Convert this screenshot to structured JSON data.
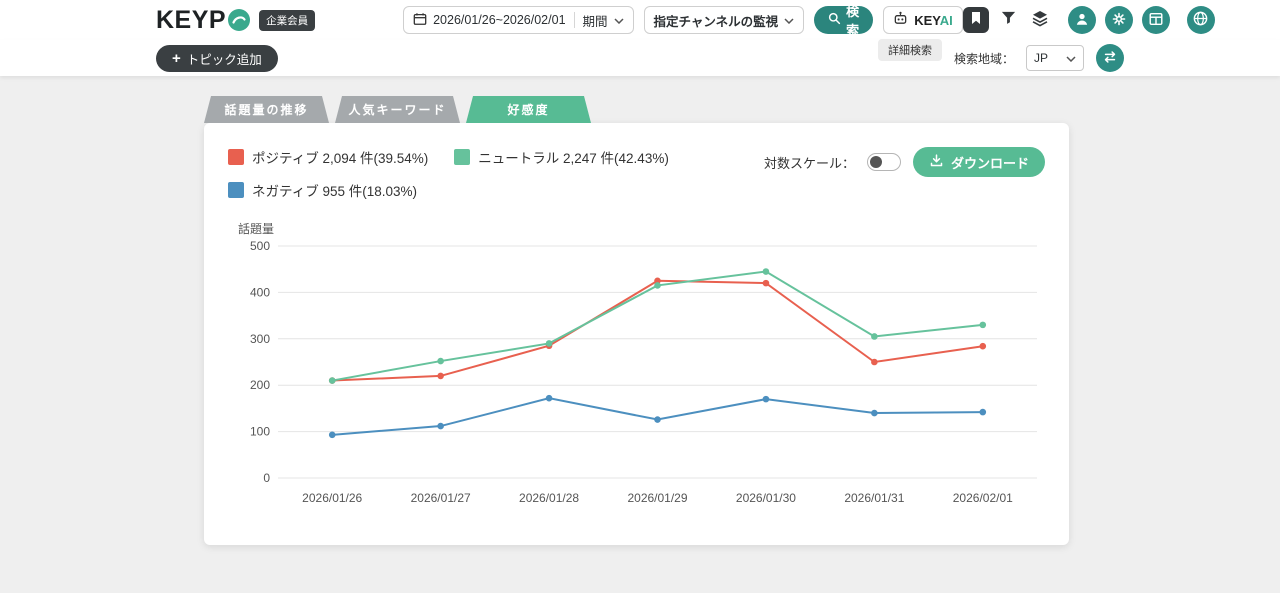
{
  "header": {
    "logo_text": "KEYP",
    "member_badge": "企業会員",
    "date_range": "2026/01/26~2026/02/01",
    "period_label": "期間",
    "channel_select_label": "指定チャンネルの監視",
    "search_button_label": "検索",
    "keyai_key": "KEY",
    "keyai_ai": "AI"
  },
  "toolbar": {
    "add_topic_icon": "+",
    "add_topic_label": "トピック追加",
    "detail_search_label": "詳細検索",
    "region_label": "検索地域：",
    "region_value": "JP"
  },
  "tabs": [
    {
      "label": "話題量の推移",
      "active": false
    },
    {
      "label": "人気キーワード",
      "active": false
    },
    {
      "label": "好感度",
      "active": true
    }
  ],
  "panel": {
    "legend": [
      {
        "label": "ポジティブ 2,094 件(39.54%)",
        "color": "#e8604f"
      },
      {
        "label": "ニュートラル 2,247 件(42.43%)",
        "color": "#66c29c"
      },
      {
        "label": "ネガティブ 955 件(18.03%)",
        "color": "#4c8fbf"
      }
    ],
    "log_scale_label": "対数スケール：",
    "download_button_label": "ダウンロード",
    "y_axis_label": "話題量"
  },
  "chart_data": {
    "type": "line",
    "x": [
      "2026/01/26",
      "2026/01/27",
      "2026/01/28",
      "2026/01/29",
      "2026/01/30",
      "2026/01/31",
      "2026/02/01"
    ],
    "series": [
      {
        "name": "ポジティブ",
        "color": "#e8604f",
        "total": "2,094",
        "percent": "39.54%",
        "values": [
          210,
          220,
          285,
          425,
          420,
          250,
          284
        ]
      },
      {
        "name": "ニュートラル",
        "color": "#66c29c",
        "total": "2,247",
        "percent": "42.43%",
        "values": [
          210,
          252,
          290,
          415,
          445,
          305,
          330
        ]
      },
      {
        "name": "ネガティブ",
        "color": "#4c8fbf",
        "total": "955",
        "percent": "18.03%",
        "values": [
          93,
          112,
          172,
          126,
          170,
          140,
          142
        ]
      }
    ],
    "ylabel": "話題量",
    "ylim": [
      0,
      500
    ],
    "yticks": [
      0,
      100,
      200,
      300,
      400,
      500
    ],
    "grid": true,
    "legend_position": "top-left"
  },
  "colors": {
    "accent_teal": "#2b857d",
    "accent_green": "#57bb94",
    "dark": "#3a3f42",
    "inactive_tab": "#a5a9ac"
  }
}
